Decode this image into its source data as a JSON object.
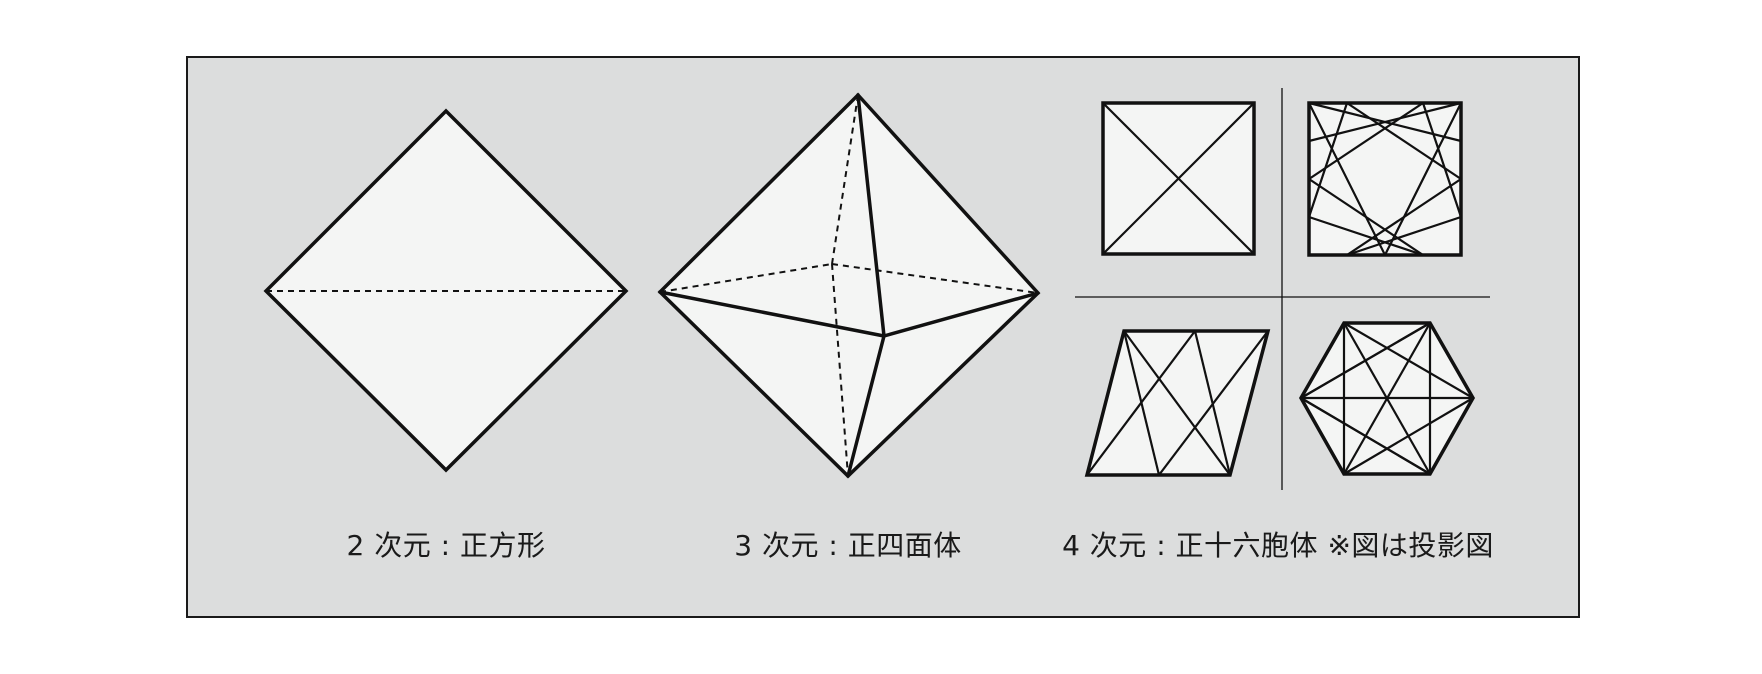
{
  "labels": {
    "square": "2 次元 : 正方形",
    "tetrahedron": "3 次元 : 正四面体",
    "hexadecachoron": "4 次元 : 正十六胞体 ※図は投影図"
  }
}
